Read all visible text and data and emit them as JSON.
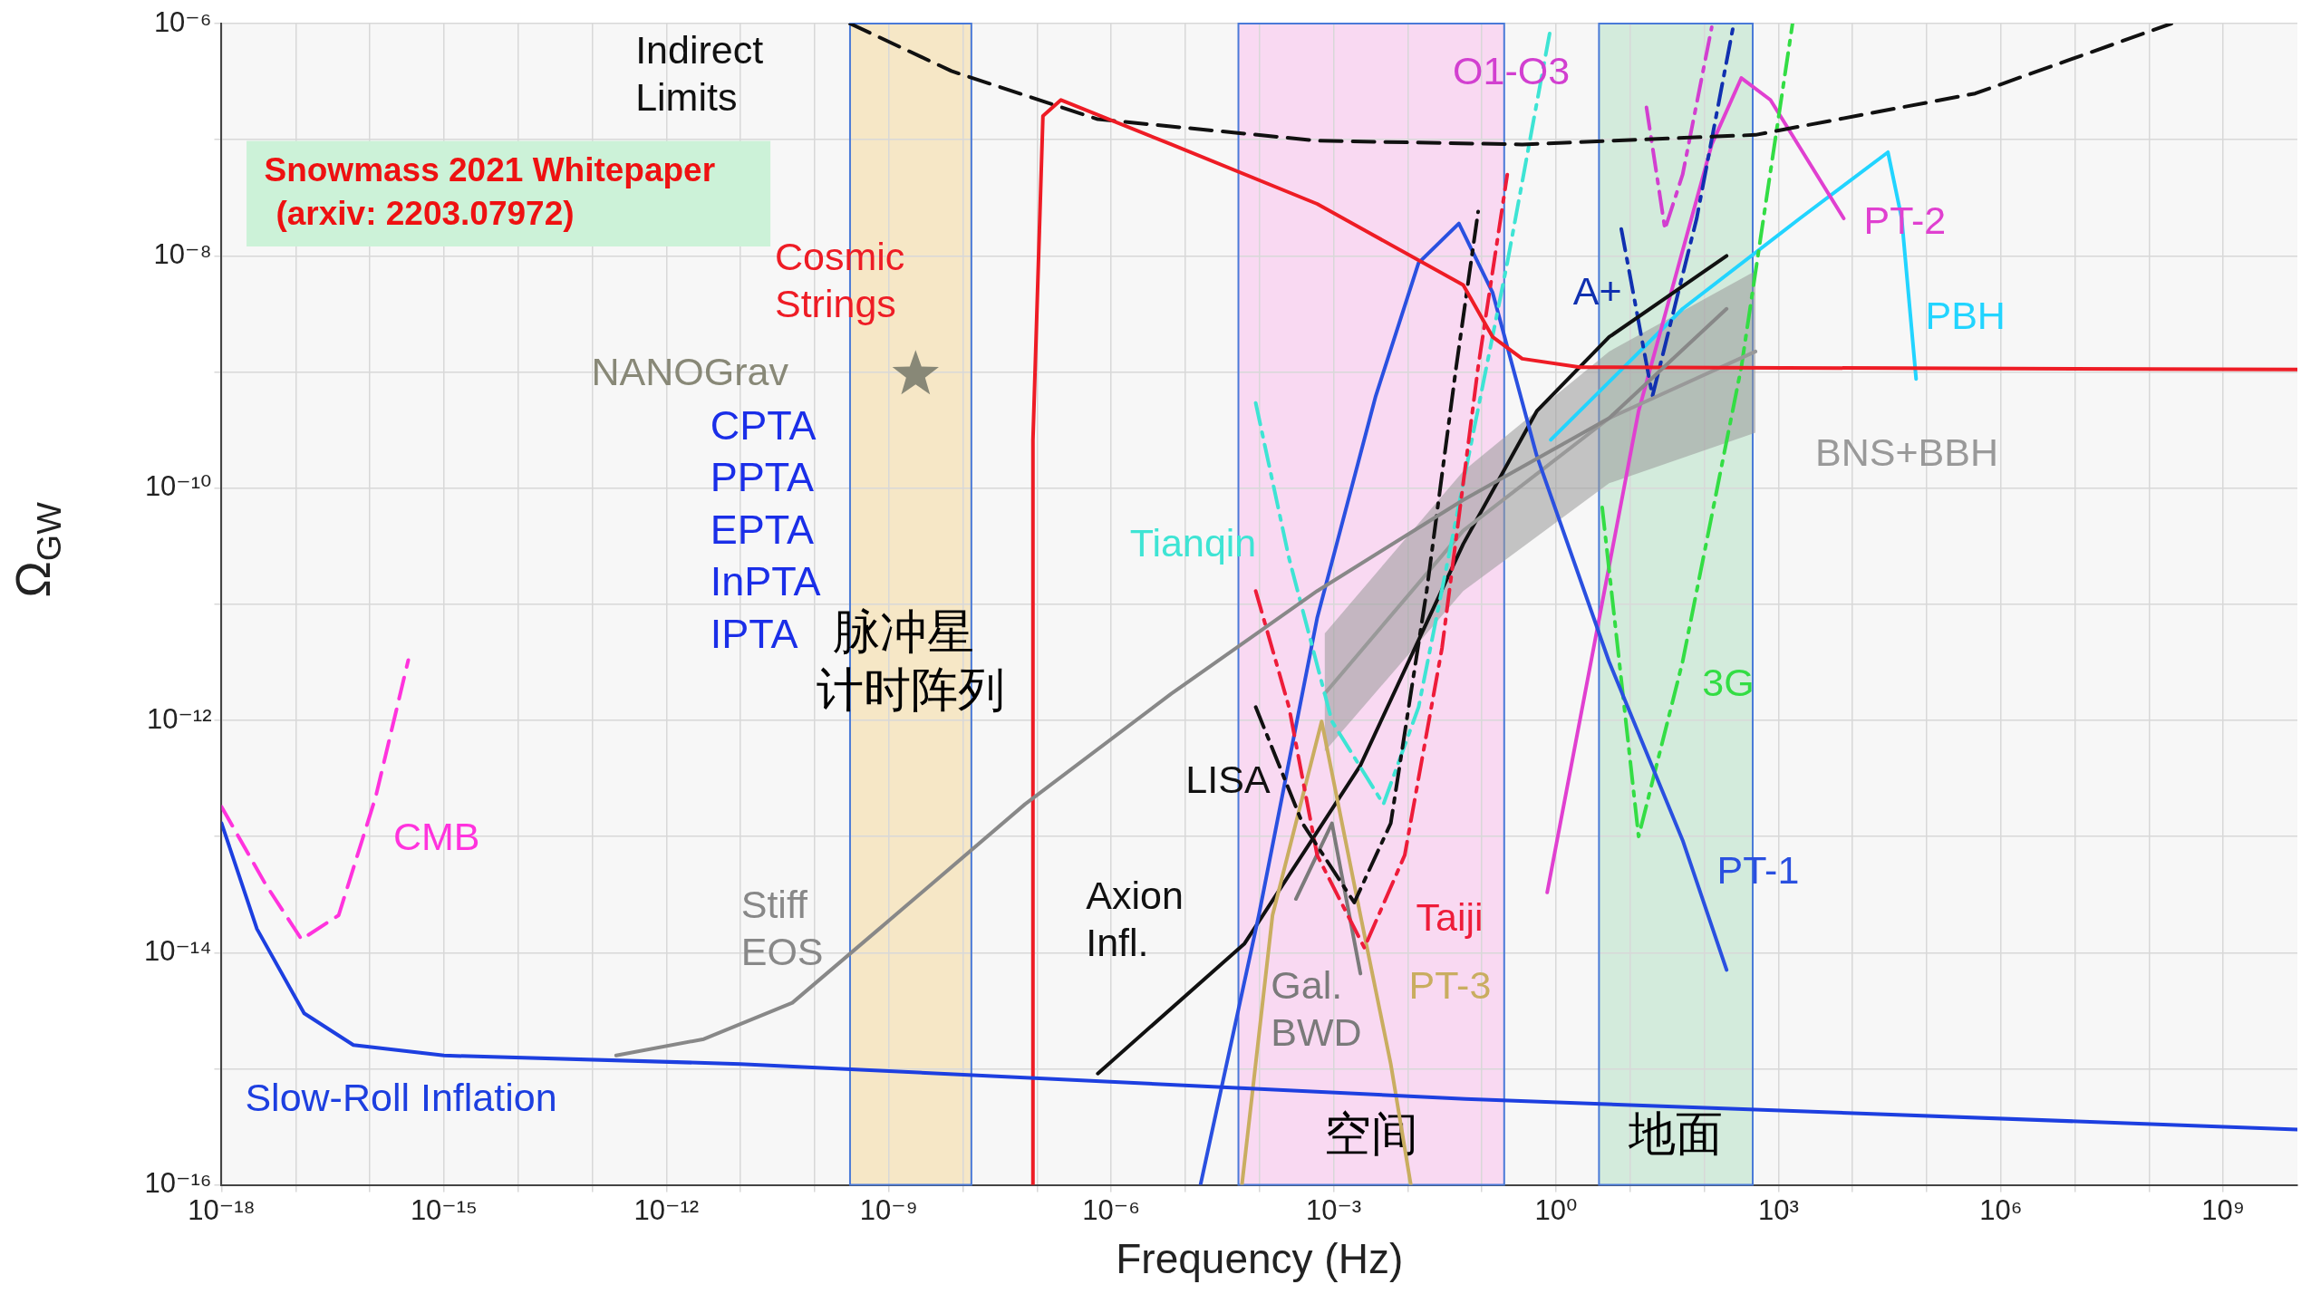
{
  "chart_data": {
    "type": "line",
    "xlabel": "Frequency (Hz)",
    "ylabel": "Ω$_{GW}$",
    "log": "xy",
    "grid": true,
    "legend": false,
    "xlim": [
      1e-18,
      10000000000.0
    ],
    "ylim": [
      1e-16,
      1e-06
    ],
    "xticks": [
      {
        "value": 1e-18,
        "label": "10⁻¹⁸"
      },
      {
        "value": 1e-17,
        "label": null
      },
      {
        "value": 1e-16,
        "label": null
      },
      {
        "value": 1e-15,
        "label": "10⁻¹⁵"
      },
      {
        "value": 1e-14,
        "label": null
      },
      {
        "value": 1e-13,
        "label": null
      },
      {
        "value": 1e-12,
        "label": "10⁻¹²"
      },
      {
        "value": 1e-11,
        "label": null
      },
      {
        "value": 1e-10,
        "label": null
      },
      {
        "value": 1e-09,
        "label": "10⁻⁹"
      },
      {
        "value": 1e-08,
        "label": null
      },
      {
        "value": 1e-07,
        "label": null
      },
      {
        "value": 1e-06,
        "label": "10⁻⁶"
      },
      {
        "value": 1e-05,
        "label": null
      },
      {
        "value": 0.0001,
        "label": null
      },
      {
        "value": 0.001,
        "label": "10⁻³"
      },
      {
        "value": 0.01,
        "label": null
      },
      {
        "value": 0.1,
        "label": null
      },
      {
        "value": 1,
        "label": "10⁰"
      },
      {
        "value": 10,
        "label": null
      },
      {
        "value": 100,
        "label": null
      },
      {
        "value": 1000,
        "label": "10³"
      },
      {
        "value": 10000.0,
        "label": null
      },
      {
        "value": 100000.0,
        "label": null
      },
      {
        "value": 1000000.0,
        "label": "10⁶"
      },
      {
        "value": 10000000.0,
        "label": null
      },
      {
        "value": 100000000.0,
        "label": null
      },
      {
        "value": 1000000000.0,
        "label": "10⁹"
      }
    ],
    "yticks": [
      {
        "value": 1e-16,
        "label": "10⁻¹⁶"
      },
      {
        "value": 1e-15,
        "label": null
      },
      {
        "value": 1e-14,
        "label": "10⁻¹⁴"
      },
      {
        "value": 1e-13,
        "label": null
      },
      {
        "value": 1e-12,
        "label": "10⁻¹²"
      },
      {
        "value": 1e-11,
        "label": null
      },
      {
        "value": 1e-10,
        "label": "10⁻¹⁰"
      },
      {
        "value": 1e-09,
        "label": null
      },
      {
        "value": 1e-08,
        "label": "10⁻⁸"
      },
      {
        "value": 1e-07,
        "label": null
      },
      {
        "value": 1e-06,
        "label": "10⁻⁶"
      }
    ],
    "bands": [
      {
        "axis": "x",
        "from": 3e-10,
        "to": 1.3e-08,
        "label": "脉冲星计时阵列",
        "color": "#f6e7c6"
      },
      {
        "axis": "x",
        "from": 5.2e-05,
        "to": 0.2,
        "label": "空间",
        "color": "#f9d9f2"
      },
      {
        "axis": "x",
        "from": 3.8,
        "to": 450,
        "label": "地面",
        "color": "#d3ebdc"
      }
    ],
    "annotations": [
      "Snowmass 2021 Whitepaper\n(arxiv: 2203.07972)",
      "CPTA",
      "PPTA",
      "EPTA",
      "InPTA",
      "IPTA"
    ],
    "series": [
      {
        "name": "Slow-Roll Inflation",
        "color": "#1d3fe0",
        "line_style": "solid",
        "x": [
          1e-18,
          3e-18,
          1.3e-17,
          6e-17,
          1e-15,
          1e-11,
          0.06,
          10000000000.0
        ],
        "values": [
          1.3e-13,
          1.6e-14,
          3e-15,
          1.6e-15,
          1.3e-15,
          1.1e-15,
          5.5e-16,
          3e-16
        ]
      },
      {
        "name": "CMB",
        "color": "#ff33dd",
        "line_style": "dashed",
        "x": [
          1e-18,
          3.9e-18,
          1.2e-17,
          3.8e-17,
          1.2e-16,
          3.3e-16
        ],
        "values": [
          1.8e-13,
          3.9e-14,
          1.3e-14,
          2.1e-14,
          2.2e-13,
          3.3e-12
        ]
      },
      {
        "name": "Stiff EOS",
        "color": "#888888",
        "line_style": "solid",
        "x": [
          2.1e-13,
          3.2e-12,
          5e-11,
          7.4e-10,
          6.9e-08,
          6.5e-06,
          0.0006,
          0.056,
          5.2,
          200
        ],
        "values": [
          1.3e-15,
          1.8e-15,
          3.7e-15,
          1.6e-14,
          1.9e-13,
          1.7e-12,
          1.3e-11,
          7.9e-11,
          4e-10,
          3.5e-09
        ]
      },
      {
        "name": "Cosmic Strings",
        "color": "#ee1c25",
        "line_style": "solid",
        "x": [
          8.7e-08,
          8.8e-08,
          1.2e-07,
          2.1e-07,
          6.5e-06,
          0.0006,
          0.056,
          0.14,
          0.35,
          2.1,
          10000000000.0
        ],
        "values": [
          1e-16,
          2.6e-10,
          1.6e-07,
          2.2e-07,
          9.1e-08,
          2.8e-08,
          5.6e-09,
          2e-09,
          1.3e-09,
          1.1e-09,
          1.05e-09
        ]
      },
      {
        "name": "Indirect Limits",
        "color": "#111111",
        "line_style": "dashed",
        "x": [
          3e-10,
          7e-09,
          6.6e-07,
          0.0006,
          0.35,
          490,
          450000.0,
          200000000.0
        ],
        "values": [
          1e-06,
          3.9e-07,
          1.5e-07,
          9.8e-08,
          9.1e-08,
          1.1e-07,
          2.5e-07,
          1e-06
        ]
      },
      {
        "name": "LISA",
        "color": "#111111",
        "line_style": "dotted",
        "x": [
          8.9e-05,
          0.00038,
          0.0019,
          0.0059,
          0.018,
          0.045,
          0.089
        ],
        "values": [
          1.3e-12,
          1.3e-13,
          2.7e-14,
          1.3e-13,
          1.3e-11,
          1.1e-09,
          2.4e-08
        ]
      },
      {
        "name": "Taiji",
        "color": "#ee1c3a",
        "line_style": "dotted",
        "x": [
          8.9e-05,
          0.00025,
          0.0006,
          0.0026,
          0.0091,
          0.029,
          0.089,
          0.22
        ],
        "values": [
          1.3e-11,
          1.3e-12,
          6.9e-14,
          1.1e-14,
          6.9e-14,
          4.2e-12,
          1.1e-09,
          5e-08
        ]
      },
      {
        "name": "Tianqin",
        "color": "#3ee4d4",
        "line_style": "dotted",
        "x": [
          8.9e-05,
          0.00025,
          0.00095,
          0.0047,
          0.014,
          0.056,
          0.22,
          0.85
        ],
        "values": [
          5.4e-10,
          2.5e-11,
          9.8e-13,
          1.9e-13,
          1.3e-12,
          1.1e-10,
          8.7e-09,
          9.3e-07
        ]
      },
      {
        "name": "PT-1",
        "color": "#2a50e0",
        "line_style": "solid",
        "x": [
          1.6e-05,
          9.8e-05,
          0.0006,
          0.0037,
          0.014,
          0.049,
          0.14,
          0.55,
          5.2,
          51,
          200
        ],
        "values": [
          1e-16,
          2.1e-14,
          7.6e-12,
          6.2e-10,
          8.7e-09,
          1.9e-08,
          4.8e-09,
          1.9e-10,
          3.2e-12,
          9.3e-14,
          7.1e-15
        ]
      },
      {
        "name": "PT-3",
        "color": "#c9ad60",
        "line_style": "solid",
        "x": [
          5.8e-05,
          0.00015,
          0.00069,
          0.0023,
          0.0059,
          0.011
        ],
        "values": [
          1e-16,
          2.1e-14,
          9.8e-13,
          2.1e-14,
          1.1e-15,
          1e-16
        ]
      },
      {
        "name": "Gal. BWD",
        "color": "#7a7a7a",
        "line_style": "solid",
        "x": [
          0.00031,
          0.00095,
          0.0023
        ],
        "values": [
          2.9e-14,
          1.3e-13,
          6.6e-15
        ]
      },
      {
        "name": "BNS+BBH",
        "color": "#999999",
        "line_style": "solid",
        "x": [
          0.00076,
          0.056,
          5.2,
          490
        ],
        "values": [
          1.7e-12,
          4.3e-11,
          4e-10,
          1.5e-09
        ],
        "lower": [
          5.4e-13,
          1.3e-11,
          1.1e-10,
          3e-10
        ],
        "upper": [
          5.6e-12,
          1.4e-10,
          1.5e-09,
          7.4e-09
        ]
      },
      {
        "name": "Axion Infl.",
        "color": "#111111",
        "line_style": "solid",
        "x": [
          6.6e-07,
          6.3e-05,
          0.0023,
          0.056,
          0.55,
          5.2,
          200
        ],
        "values": [
          9.1e-16,
          1.2e-14,
          4.1e-13,
          3.3e-11,
          4.6e-10,
          2e-09,
          1e-08
        ]
      },
      {
        "name": "O1-O3",
        "color": "#d23fd0",
        "line_style": "dotted",
        "x": [
          16.6,
          29.5,
          51,
          126
        ],
        "values": [
          1.9e-07,
          1.7e-08,
          5e-08,
          9.3e-07
        ]
      },
      {
        "name": "A+",
        "color": "#1030b0",
        "line_style": "dotted",
        "x": [
          7.6,
          20,
          79,
          250
        ],
        "values": [
          1.7e-08,
          6.2e-10,
          2.1e-08,
          1e-06
        ]
      },
      {
        "name": "3G",
        "color": "#33dd44",
        "line_style": "dotted",
        "x": [
          4.2,
          13,
          51,
          316,
          1550
        ],
        "values": [
          6.8e-11,
          1e-13,
          3.2e-12,
          1.1e-09,
          1e-06
        ]
      },
      {
        "name": "PT-2",
        "color": "#e040d0",
        "line_style": "solid",
        "x": [
          0.76,
          13,
          126,
          316,
          780,
          7600
        ],
        "values": [
          3.3e-14,
          4.6e-10,
          9.1e-08,
          3.4e-07,
          2.2e-07,
          2.1e-08
        ]
      },
      {
        "name": "PBH",
        "color": "#22d4ff",
        "line_style": "solid",
        "x": [
          0.85,
          51,
          1950,
          30000.0,
          46000.0,
          72000.0
        ],
        "values": [
          2.6e-10,
          3.5e-09,
          2.1e-08,
          7.8e-08,
          2.1e-08,
          8.7e-10
        ]
      },
      {
        "name": "NANOGrav",
        "type": "scatter",
        "marker": "star",
        "color": "#888877",
        "x": [
          2.3e-09
        ],
        "values": [
          9.5e-10
        ]
      }
    ]
  }
}
